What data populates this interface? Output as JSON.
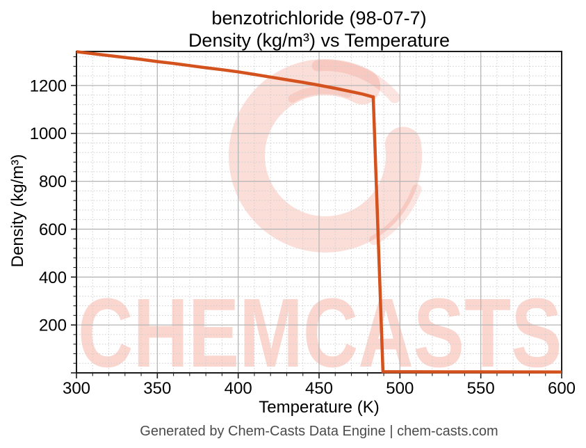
{
  "title": {
    "line1": "benzotrichloride (98-07-7)",
    "line2": "Density (kg/m³) vs Temperature"
  },
  "watermark": {
    "text": "CHEMCASTS",
    "color": "#f07860"
  },
  "footer": {
    "text": "Generated by Chem-Casts Data Engine | chem-casts.com"
  },
  "chart_data": {
    "type": "line",
    "title": "benzotrichloride (98-07-7)\nDensity (kg/m³) vs Temperature",
    "xlabel": "Temperature (K)",
    "ylabel": "Density (kg/m³)",
    "xlim": [
      300,
      600
    ],
    "ylim": [
      0,
      1342
    ],
    "xticks": [
      300,
      350,
      400,
      450,
      500,
      550,
      600
    ],
    "yticks": [
      200,
      400,
      600,
      800,
      1000,
      1200
    ],
    "x_minor_step": 10,
    "y_minor_step": 40,
    "grid": true,
    "legend": "none",
    "line_color": "#d3521e",
    "line_width": 4.5,
    "grid_major_color": "#b5b5b5",
    "grid_minor_color": "#cdcdcd",
    "series": [
      {
        "name": "density",
        "points": [
          [
            300,
            1341
          ],
          [
            310,
            1333
          ],
          [
            320,
            1325
          ],
          [
            330,
            1317
          ],
          [
            340,
            1309
          ],
          [
            350,
            1300
          ],
          [
            360,
            1292
          ],
          [
            370,
            1283
          ],
          [
            380,
            1274
          ],
          [
            390,
            1266
          ],
          [
            400,
            1257
          ],
          [
            410,
            1246
          ],
          [
            420,
            1235
          ],
          [
            430,
            1224
          ],
          [
            440,
            1213
          ],
          [
            450,
            1201
          ],
          [
            460,
            1188
          ],
          [
            470,
            1174
          ],
          [
            477,
            1164
          ],
          [
            483.5,
            1152
          ],
          [
            489.5,
            4.9
          ],
          [
            510,
            4.7
          ],
          [
            530,
            4.5
          ],
          [
            550,
            4.3
          ],
          [
            575,
            4.1
          ],
          [
            600,
            3.9
          ]
        ]
      }
    ]
  }
}
